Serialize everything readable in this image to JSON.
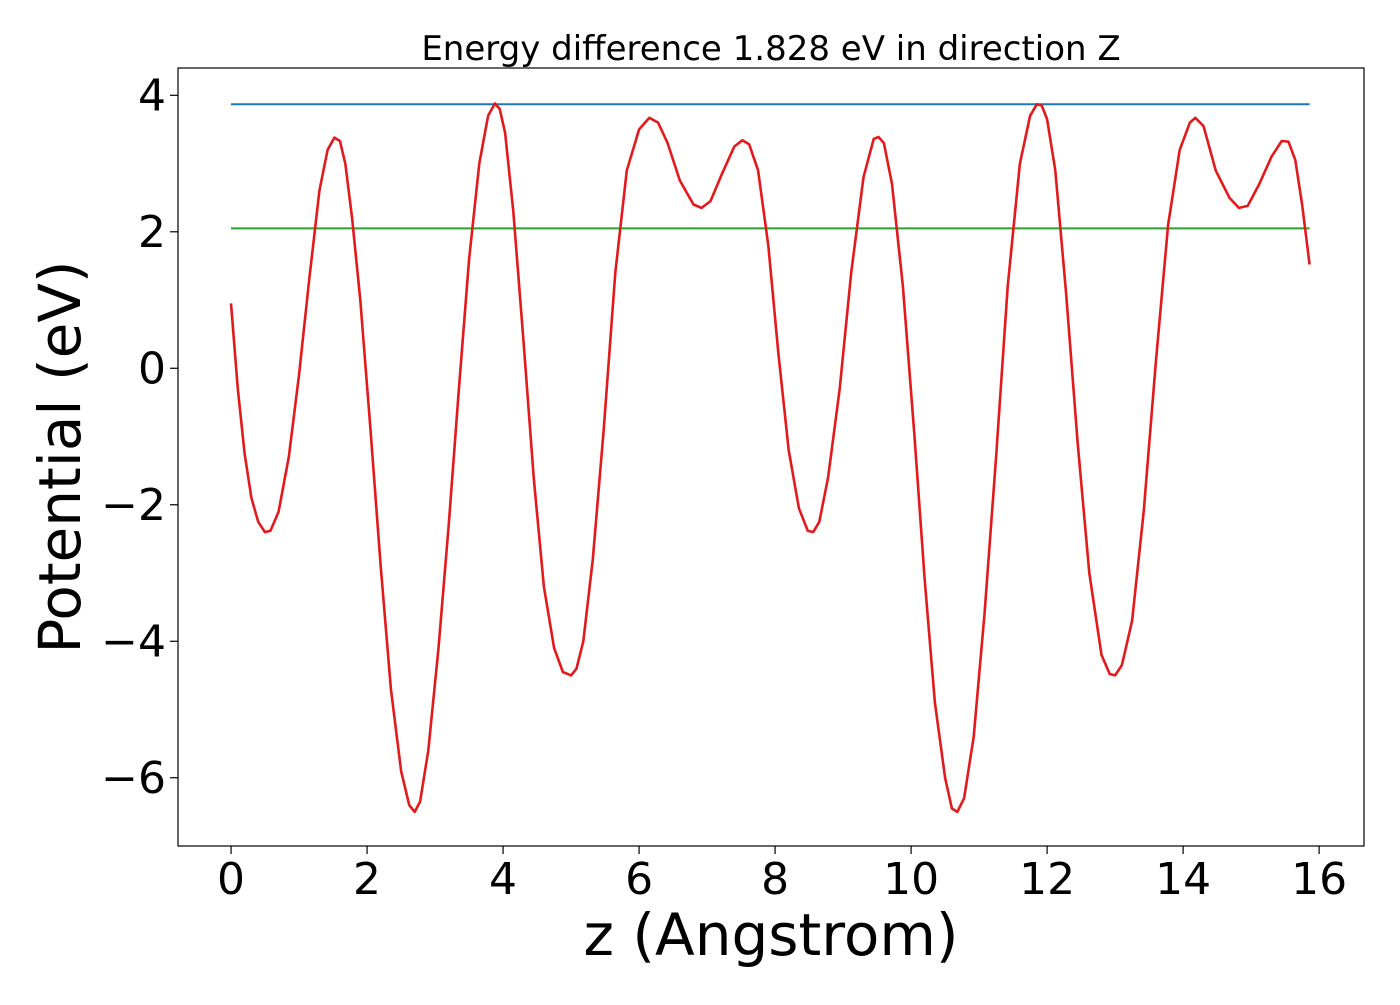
{
  "chart_data": {
    "type": "line",
    "title": "Energy difference 1.828 eV in direction Z",
    "xlabel": "z (Angstrom)",
    "ylabel": "Potential (eV)",
    "xlim": [
      -0.78,
      16.66
    ],
    "ylim": [
      -7.0,
      4.4
    ],
    "x_ticks": [
      0,
      2,
      4,
      6,
      8,
      10,
      12,
      14,
      16
    ],
    "y_ticks": [
      -6,
      -4,
      -2,
      0,
      2,
      4
    ],
    "x_tick_labels": [
      "0",
      "2",
      "4",
      "6",
      "8",
      "10",
      "12",
      "14",
      "16"
    ],
    "y_tick_labels": [
      "−6",
      "−4",
      "−2",
      "0",
      "2",
      "4"
    ],
    "grid": false,
    "series": [
      {
        "color": "#1f77b4",
        "x": [
          0,
          15.86
        ],
        "y": [
          3.87,
          3.87
        ]
      },
      {
        "color": "#2ca02c",
        "x": [
          0,
          15.86
        ],
        "y": [
          2.05,
          2.05
        ]
      },
      {
        "color": "#e31a1c",
        "x": [
          0,
          0.1,
          0.2,
          0.3,
          0.4,
          0.5,
          0.58,
          0.7,
          0.85,
          1.0,
          1.15,
          1.3,
          1.42,
          1.52,
          1.6,
          1.68,
          1.78,
          1.9,
          2.05,
          2.2,
          2.35,
          2.5,
          2.62,
          2.7,
          2.78,
          2.9,
          3.05,
          3.2,
          3.35,
          3.5,
          3.65,
          3.78,
          3.88,
          3.95,
          4.03,
          4.15,
          4.3,
          4.45,
          4.6,
          4.75,
          4.88,
          5.0,
          5.08,
          5.18,
          5.32,
          5.48,
          5.65,
          5.82,
          6.0,
          6.15,
          6.28,
          6.42,
          6.6,
          6.8,
          6.92,
          7.05,
          7.22,
          7.4,
          7.52,
          7.62,
          7.75,
          7.9,
          8.05,
          8.2,
          8.35,
          8.48,
          8.56,
          8.65,
          8.78,
          8.95,
          9.12,
          9.3,
          9.45,
          9.52,
          9.6,
          9.72,
          9.88,
          10.05,
          10.2,
          10.35,
          10.5,
          10.6,
          10.68,
          10.78,
          10.92,
          11.08,
          11.25,
          11.42,
          11.6,
          11.75,
          11.85,
          11.92,
          12.0,
          12.12,
          12.28,
          12.45,
          12.62,
          12.8,
          12.92,
          13.0,
          13.1,
          13.25,
          13.42,
          13.6,
          13.78,
          13.95,
          14.1,
          14.18,
          14.3,
          14.48,
          14.68,
          14.82,
          14.95,
          15.12,
          15.3,
          15.45,
          15.55,
          15.65,
          15.75,
          15.86
        ],
        "y": [
          0.95,
          -0.3,
          -1.25,
          -1.9,
          -2.25,
          -2.4,
          -2.38,
          -2.1,
          -1.3,
          -0.1,
          1.3,
          2.6,
          3.2,
          3.38,
          3.33,
          3.0,
          2.2,
          1.0,
          -0.9,
          -2.9,
          -4.7,
          -5.9,
          -6.4,
          -6.5,
          -6.35,
          -5.6,
          -4.1,
          -2.3,
          -0.3,
          1.6,
          3.0,
          3.7,
          3.88,
          3.8,
          3.45,
          2.3,
          0.4,
          -1.6,
          -3.2,
          -4.1,
          -4.45,
          -4.5,
          -4.4,
          -4.0,
          -2.8,
          -0.9,
          1.4,
          2.9,
          3.5,
          3.67,
          3.6,
          3.3,
          2.75,
          2.4,
          2.35,
          2.45,
          2.85,
          3.25,
          3.34,
          3.28,
          2.9,
          1.8,
          0.2,
          -1.2,
          -2.05,
          -2.38,
          -2.4,
          -2.25,
          -1.6,
          -0.3,
          1.4,
          2.8,
          3.36,
          3.39,
          3.3,
          2.7,
          1.2,
          -1.0,
          -3.1,
          -4.9,
          -6.0,
          -6.45,
          -6.5,
          -6.3,
          -5.4,
          -3.6,
          -1.3,
          1.2,
          3.0,
          3.7,
          3.87,
          3.85,
          3.65,
          2.9,
          1.1,
          -1.1,
          -3.0,
          -4.2,
          -4.48,
          -4.5,
          -4.35,
          -3.7,
          -2.1,
          0.1,
          2.1,
          3.2,
          3.6,
          3.67,
          3.55,
          2.9,
          2.5,
          2.35,
          2.38,
          2.7,
          3.1,
          3.33,
          3.32,
          3.05,
          2.4,
          1.52
        ]
      }
    ]
  }
}
